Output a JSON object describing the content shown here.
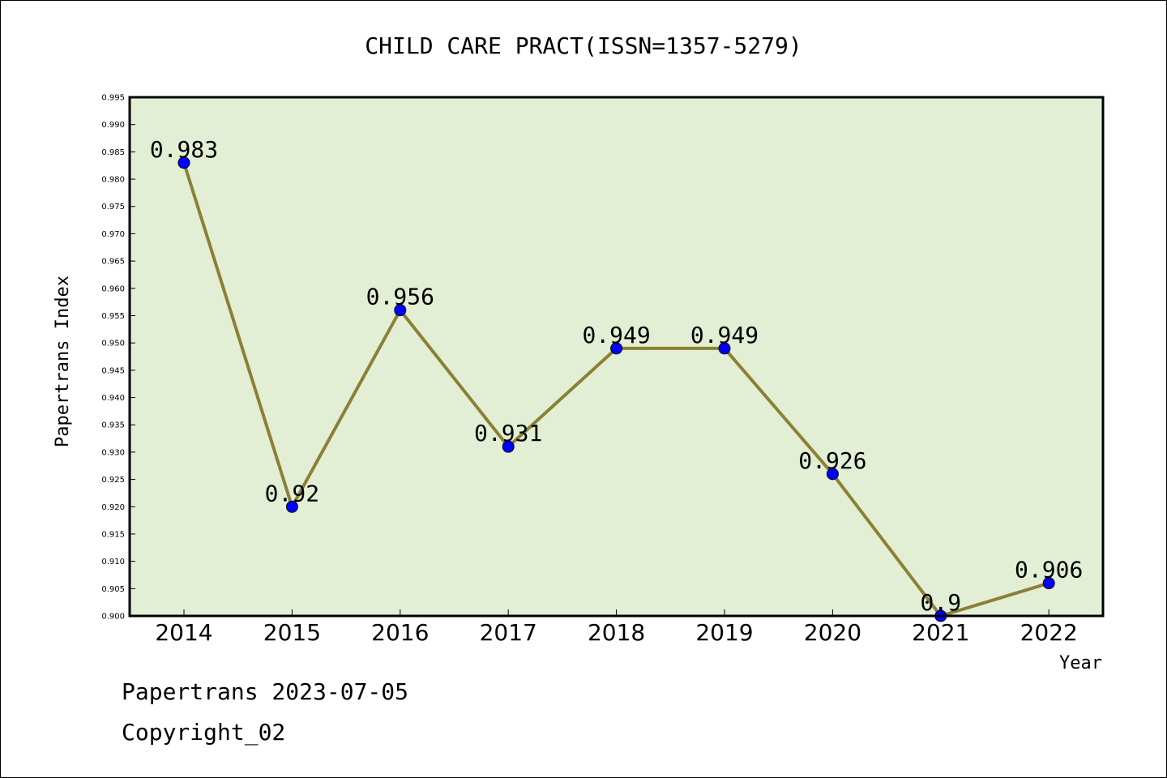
{
  "chart_data": {
    "type": "line",
    "title": "CHILD CARE PRACT(ISSN=1357-5279)",
    "xlabel": "Year",
    "ylabel": "Papertrans Index",
    "categories": [
      "2014",
      "2015",
      "2016",
      "2017",
      "2018",
      "2019",
      "2020",
      "2021",
      "2022"
    ],
    "values": [
      0.983,
      0.92,
      0.956,
      0.931,
      0.949,
      0.949,
      0.926,
      0.9,
      0.906
    ],
    "data_labels": [
      "0.983",
      "0.92",
      "0.956",
      "0.931",
      "0.949",
      "0.949",
      "0.926",
      "0.9",
      "0.906"
    ],
    "y_ticks": [
      "0.900",
      "0.905",
      "0.910",
      "0.915",
      "0.920",
      "0.925",
      "0.930",
      "0.935",
      "0.940",
      "0.945",
      "0.950",
      "0.955",
      "0.960",
      "0.965",
      "0.970",
      "0.975",
      "0.980",
      "0.985",
      "0.990",
      "0.995"
    ],
    "ylim": [
      0.9,
      0.995
    ],
    "grid": false,
    "colors": {
      "line": "#8b8035",
      "marker": "#0000ff",
      "plot_background": "#e2efd5",
      "frame": "#000000"
    }
  },
  "footer": {
    "line1": "Papertrans 2023-07-05",
    "line2": "Copyright_02"
  }
}
